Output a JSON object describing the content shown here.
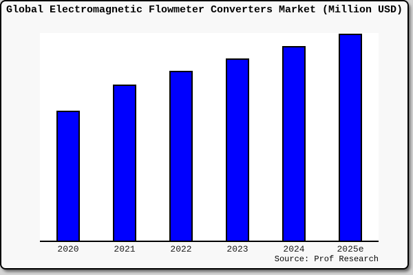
{
  "page": {
    "title": "Global Electromagnetic Flowmeter Converters Market (Million USD)",
    "source_note": "Source: Prof Research"
  },
  "colors": {
    "bar_fill": "#0000ff",
    "bar_border": "#000000",
    "plot_background": "#ffffff",
    "card_background": "#f8f8f8",
    "card_border": "#000000",
    "axis": "#000000",
    "page_background": "#d5d5d5"
  },
  "chart_data": {
    "type": "bar",
    "title": "Global Electromagnetic Flowmeter Converters Market (Million USD)",
    "categories": [
      "2020",
      "2021",
      "2022",
      "2023",
      "2024",
      "2025e"
    ],
    "values": [
      62.8,
      75.4,
      82.1,
      88.0,
      94.0,
      100
    ],
    "value_units": "relative height, % of tallest (2025e) bar; no y-axis scale shown in chart",
    "series_color": "#0000ff",
    "xlabel": "",
    "ylabel": "",
    "ylim": [
      0,
      100
    ],
    "grid": false,
    "legend": "none",
    "y_axis_ticks": "none shown",
    "annotations": [
      "Source: Prof Research"
    ]
  }
}
